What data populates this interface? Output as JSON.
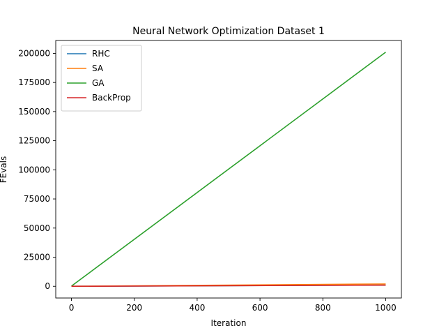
{
  "chart_data": {
    "type": "line",
    "title": "Neural Network Optimization Dataset 1",
    "xlabel": "Iteration",
    "ylabel": "FEvals",
    "xlim": [
      -50,
      1050
    ],
    "ylim": [
      -10050,
      211050
    ],
    "xticks": [
      0,
      200,
      400,
      600,
      800,
      1000
    ],
    "yticks": [
      0,
      25000,
      50000,
      75000,
      100000,
      125000,
      150000,
      175000,
      200000
    ],
    "grid": false,
    "legend_position": "top-left",
    "series": [
      {
        "name": "RHC",
        "color": "#1f77b4",
        "x": [
          0,
          1000
        ],
        "y": [
          1,
          1001
        ]
      },
      {
        "name": "SA",
        "color": "#ff7f0e",
        "x": [
          0,
          1000
        ],
        "y": [
          2,
          2002
        ]
      },
      {
        "name": "GA",
        "color": "#2ca02c",
        "x": [
          0,
          1000
        ],
        "y": [
          200,
          201000
        ]
      },
      {
        "name": "BackProp",
        "color": "#d62728",
        "x": [
          0,
          1000
        ],
        "y": [
          1,
          1001
        ]
      }
    ]
  }
}
